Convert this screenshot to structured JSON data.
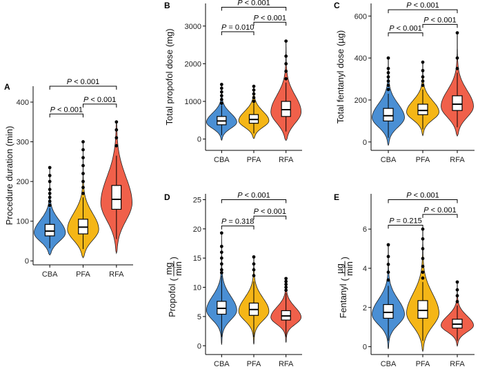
{
  "colors": {
    "CBA": "#4a8fd4",
    "PFA": "#f5b617",
    "RFA": "#f0604a"
  },
  "chart_data": [
    {
      "id": "A",
      "panel_label": "A",
      "type": "violin",
      "ylabel": "Procedure duration (min)",
      "ylim": [
        -10,
        440
      ],
      "yticks": [
        0,
        100,
        200,
        300,
        400
      ],
      "categories": [
        "CBA",
        "PFA",
        "RFA"
      ],
      "series": [
        {
          "name": "CBA",
          "q1": 63,
          "median": 75,
          "q3": 92,
          "wlo": 32,
          "whi": 133,
          "outliers": [
            140,
            150,
            160,
            170,
            180,
            200,
            215,
            235
          ]
        },
        {
          "name": "PFA",
          "q1": 68,
          "median": 85,
          "q3": 105,
          "wlo": 30,
          "whi": 160,
          "outliers": [
            170,
            185,
            200,
            220,
            240,
            260,
            280,
            300
          ]
        },
        {
          "name": "RFA",
          "q1": 130,
          "median": 155,
          "q3": 190,
          "wlo": 55,
          "whi": 265,
          "outliers": [
            290,
            310,
            330,
            350
          ]
        }
      ],
      "comparisons": [
        {
          "from": "CBA",
          "to": "PFA",
          "y": 370,
          "text": "P < 0.001"
        },
        {
          "from": "PFA",
          "to": "RFA",
          "y": 395,
          "text": "P < 0.001"
        },
        {
          "from": "CBA",
          "to": "RFA",
          "y": 440,
          "text": "P < 0.001"
        }
      ]
    },
    {
      "id": "B",
      "panel_label": "B",
      "type": "violin",
      "ylabel": "Total propofol dose (mg)",
      "ylim": [
        -300,
        3600
      ],
      "yticks": [
        0,
        1000,
        2000,
        3000
      ],
      "categories": [
        "CBA",
        "PFA",
        "RFA"
      ],
      "series": [
        {
          "name": "CBA",
          "q1": 380,
          "median": 480,
          "q3": 600,
          "wlo": 100,
          "whi": 900,
          "outliers": [
            950,
            1050,
            1150,
            1250,
            1350,
            1450
          ]
        },
        {
          "name": "PFA",
          "q1": 420,
          "median": 520,
          "q3": 650,
          "wlo": 150,
          "whi": 950,
          "outliers": [
            1000,
            1100,
            1200,
            1300,
            1400
          ]
        },
        {
          "name": "RFA",
          "q1": 600,
          "median": 780,
          "q3": 1000,
          "wlo": 200,
          "whi": 1500,
          "outliers": [
            1600,
            1800,
            2000,
            2200,
            2600
          ]
        }
      ],
      "comparisons": [
        {
          "from": "CBA",
          "to": "PFA",
          "y": 2850,
          "text": "P = 0.010"
        },
        {
          "from": "PFA",
          "to": "RFA",
          "y": 3100,
          "text": "P < 0.001"
        },
        {
          "from": "CBA",
          "to": "RFA",
          "y": 3500,
          "text": "P < 0.001"
        }
      ]
    },
    {
      "id": "C",
      "panel_label": "C",
      "type": "violin",
      "ylabel": "Total fentanyl dose (µg)",
      "ylim": [
        -40,
        660
      ],
      "yticks": [
        0,
        200,
        400,
        600
      ],
      "categories": [
        "CBA",
        "PFA",
        "RFA"
      ],
      "series": [
        {
          "name": "CBA",
          "q1": 100,
          "median": 125,
          "q3": 160,
          "wlo": 20,
          "whi": 230,
          "outliers": [
            250,
            270,
            290,
            310,
            330,
            350,
            400
          ]
        },
        {
          "name": "PFA",
          "q1": 130,
          "median": 150,
          "q3": 180,
          "wlo": 60,
          "whi": 250,
          "outliers": [
            270,
            290,
            310,
            340,
            380
          ]
        },
        {
          "name": "RFA",
          "q1": 150,
          "median": 180,
          "q3": 220,
          "wlo": 70,
          "whi": 330,
          "outliers": [
            350,
            400,
            520
          ]
        }
      ],
      "comparisons": [
        {
          "from": "CBA",
          "to": "PFA",
          "y": 520,
          "text": "P < 0.001"
        },
        {
          "from": "PFA",
          "to": "RFA",
          "y": 560,
          "text": "P < 0.001"
        },
        {
          "from": "CBA",
          "to": "RFA",
          "y": 630,
          "text": "P < 0.001"
        }
      ]
    },
    {
      "id": "D",
      "panel_label": "D",
      "type": "violin",
      "ylabel": "Propofol",
      "yunit_num": "mg",
      "yunit_den": "min",
      "ylim": [
        -1.5,
        26
      ],
      "yticks": [
        0,
        5,
        10,
        15,
        20,
        25
      ],
      "categories": [
        "CBA",
        "PFA",
        "RFA"
      ],
      "series": [
        {
          "name": "CBA",
          "q1": 5.4,
          "median": 6.4,
          "q3": 7.6,
          "wlo": 1.5,
          "whi": 12.0,
          "outliers": [
            12.5,
            13,
            14,
            15,
            16,
            17,
            19.3
          ]
        },
        {
          "name": "PFA",
          "q1": 5.2,
          "median": 6.2,
          "q3": 7.3,
          "wlo": 1.5,
          "whi": 11.0,
          "outliers": [
            12,
            13,
            14,
            15.2
          ]
        },
        {
          "name": "RFA",
          "q1": 4.4,
          "median": 5.1,
          "q3": 6.0,
          "wlo": 1.5,
          "whi": 9.0,
          "outliers": [
            9.5,
            10,
            10.5,
            11,
            11.5
          ]
        }
      ],
      "comparisons": [
        {
          "from": "CBA",
          "to": "PFA",
          "y": 20.5,
          "text": "P = 0.318"
        },
        {
          "from": "PFA",
          "to": "RFA",
          "y": 22.2,
          "text": "P < 0.001"
        },
        {
          "from": "CBA",
          "to": "RFA",
          "y": 25.0,
          "text": "P < 0.001"
        }
      ]
    },
    {
      "id": "E",
      "panel_label": "E",
      "type": "violin",
      "ylabel": "Fentanyl",
      "yunit_num": "µg",
      "yunit_den": "min",
      "ylim": [
        -0.4,
        7.8
      ],
      "yticks": [
        0,
        2,
        4,
        6
      ],
      "categories": [
        "CBA",
        "PFA",
        "RFA"
      ],
      "series": [
        {
          "name": "CBA",
          "q1": 1.45,
          "median": 1.75,
          "q3": 2.15,
          "wlo": 0.3,
          "whi": 3.1,
          "outliers": [
            3.4,
            3.8,
            4.2,
            4.6,
            5.2
          ]
        },
        {
          "name": "PFA",
          "q1": 1.45,
          "median": 1.85,
          "q3": 2.35,
          "wlo": 0.3,
          "whi": 3.3,
          "outliers": [
            3.5,
            3.8,
            4.1,
            4.5,
            5.0,
            5.5,
            6.0
          ]
        },
        {
          "name": "RFA",
          "q1": 0.95,
          "median": 1.15,
          "q3": 1.4,
          "wlo": 0.3,
          "whi": 2.1,
          "outliers": [
            2.3,
            2.6,
            2.9,
            3.3
          ]
        }
      ],
      "comparisons": [
        {
          "from": "CBA",
          "to": "PFA",
          "y": 6.2,
          "text": "P = 0.215"
        },
        {
          "from": "PFA",
          "to": "RFA",
          "y": 6.75,
          "text": "P < 0.001"
        },
        {
          "from": "CBA",
          "to": "RFA",
          "y": 7.5,
          "text": "P < 0.001"
        }
      ]
    }
  ]
}
